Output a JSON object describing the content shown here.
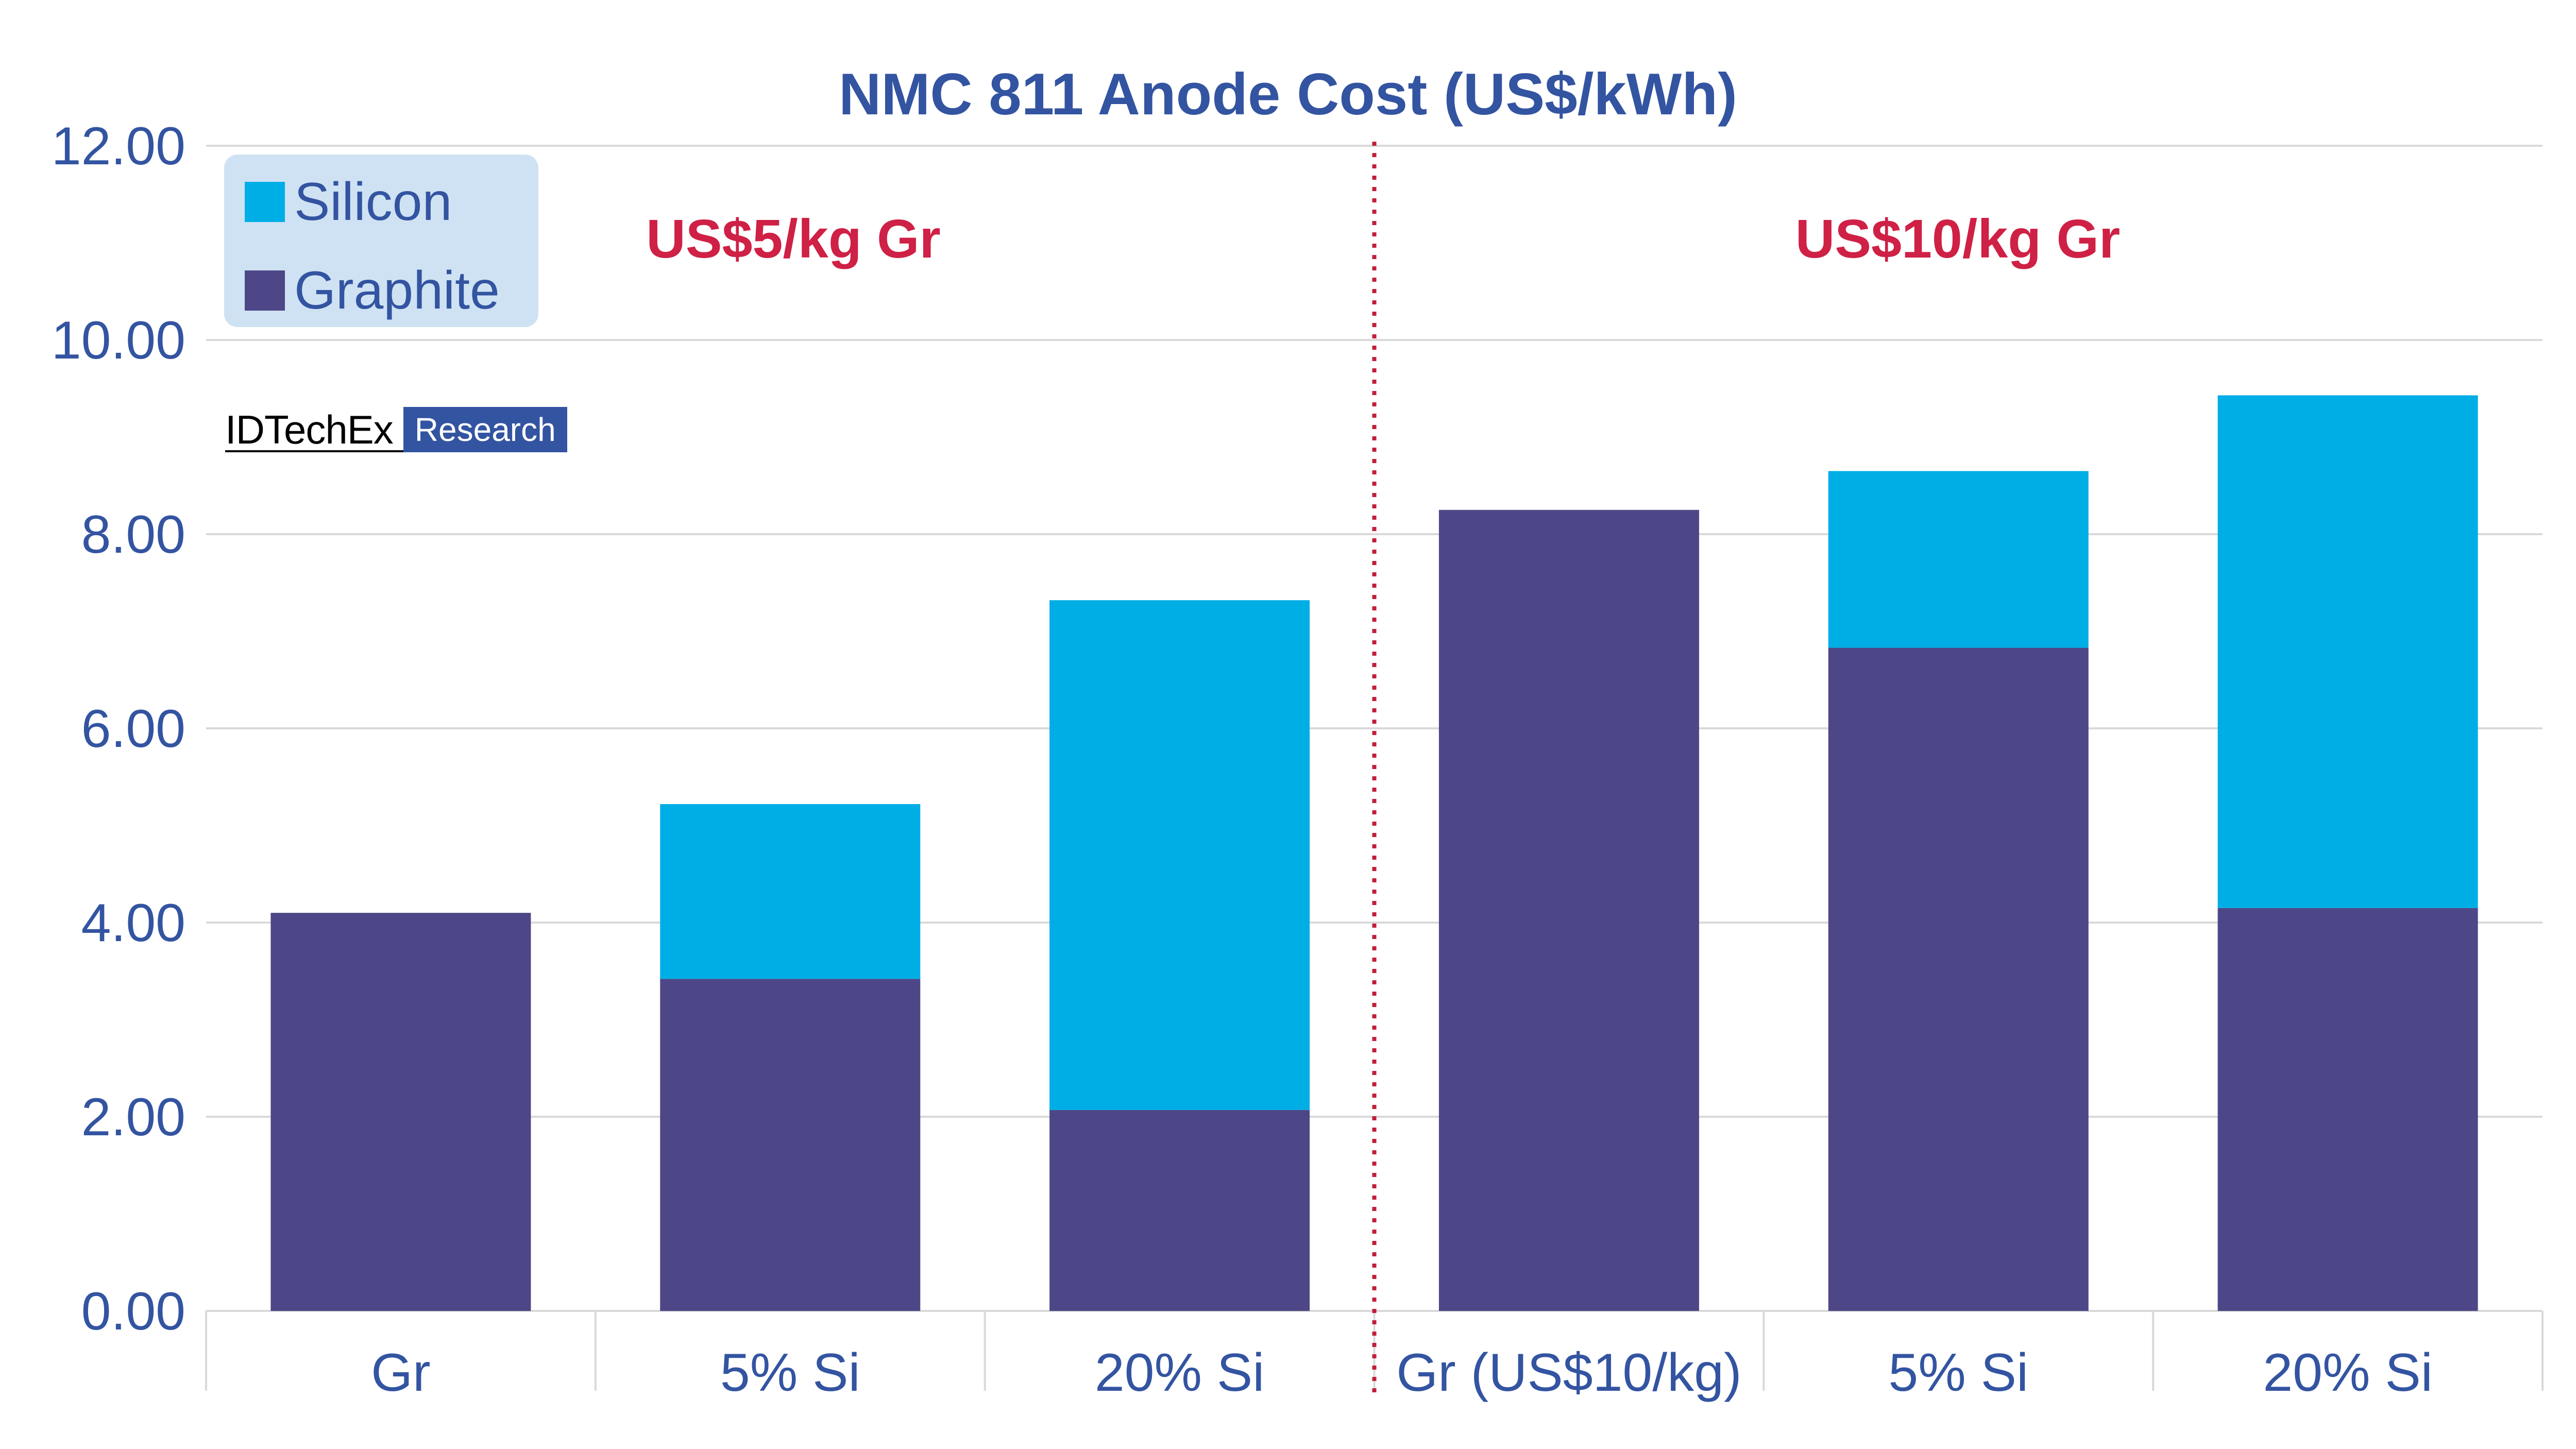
{
  "chart_data": {
    "type": "bar",
    "stacked": true,
    "title": "NMC 811 Anode Cost (US$/kWh)",
    "categories": [
      "Gr",
      "5% Si",
      "20% Si",
      "Gr (US$10/kg)",
      "5% Si",
      "20% Si"
    ],
    "series": [
      {
        "name": "Graphite",
        "color": "#4d4787",
        "values": [
          4.1,
          3.42,
          2.07,
          8.25,
          6.83,
          4.15
        ]
      },
      {
        "name": "Silicon",
        "color": "#00aee6",
        "values": [
          0.0,
          1.8,
          5.25,
          0.0,
          1.82,
          5.28
        ]
      }
    ],
    "ylim": [
      0,
      12
    ],
    "yticks": [
      0,
      2,
      4,
      6,
      8,
      10,
      12
    ],
    "ytick_labels": [
      "0.00",
      "2.00",
      "4.00",
      "6.00",
      "8.00",
      "10.00",
      "12.00"
    ],
    "xlabel": "",
    "ylabel": "",
    "grid": true,
    "legend_position": "top-left",
    "groups": [
      {
        "label": "US$5/kg Gr",
        "color": "#cf2045"
      },
      {
        "label": "US$10/kg Gr",
        "color": "#cf2045"
      }
    ]
  },
  "colors": {
    "title": "#3354a1",
    "axis_text": "#3354a1",
    "grid": "#d9d9d9",
    "divider": "#c21e3a",
    "legend_bg": "#cfe2f3",
    "logo_badge": "#3354a1"
  },
  "logo": {
    "brand": "IDTechEx",
    "badge": "Research"
  }
}
